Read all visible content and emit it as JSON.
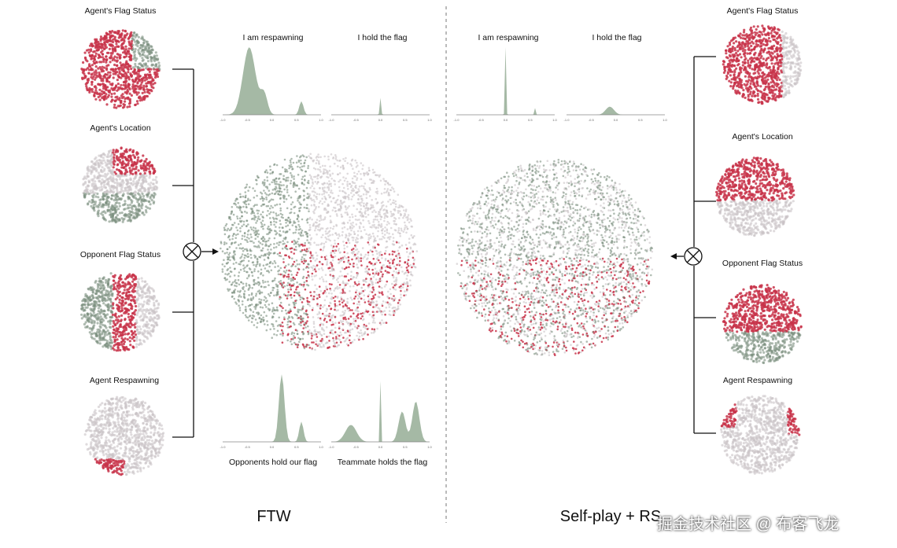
{
  "left": {
    "method_label": "FTW",
    "cluster_labels": [
      "Agent's Flag Status",
      "Agent's Location",
      "Opponent Flag Status",
      "Agent Respawning"
    ],
    "top_plot_labels": [
      "I am respawning",
      "I hold the flag"
    ],
    "bottom_plot_labels": [
      "Opponents hold our flag",
      "Teammate holds the flag"
    ]
  },
  "right": {
    "method_label": "Self-play + RS",
    "cluster_labels": [
      "Agent's Flag Status",
      "Agent's Location",
      "Opponent Flag Status",
      "Agent Respawning"
    ],
    "top_plot_labels": [
      "I am respawning",
      "I hold the flag"
    ]
  },
  "axis_ticks": [
    "-1.0",
    "-0.5",
    "0.0",
    "0.5",
    "1.0"
  ],
  "watermark": "掘金技术社区 @ 布客飞龙",
  "colors": {
    "red": "#c8344a",
    "green": "#7c8f7e",
    "grey": "#c9c3c6",
    "density": "#8fa88f"
  }
}
